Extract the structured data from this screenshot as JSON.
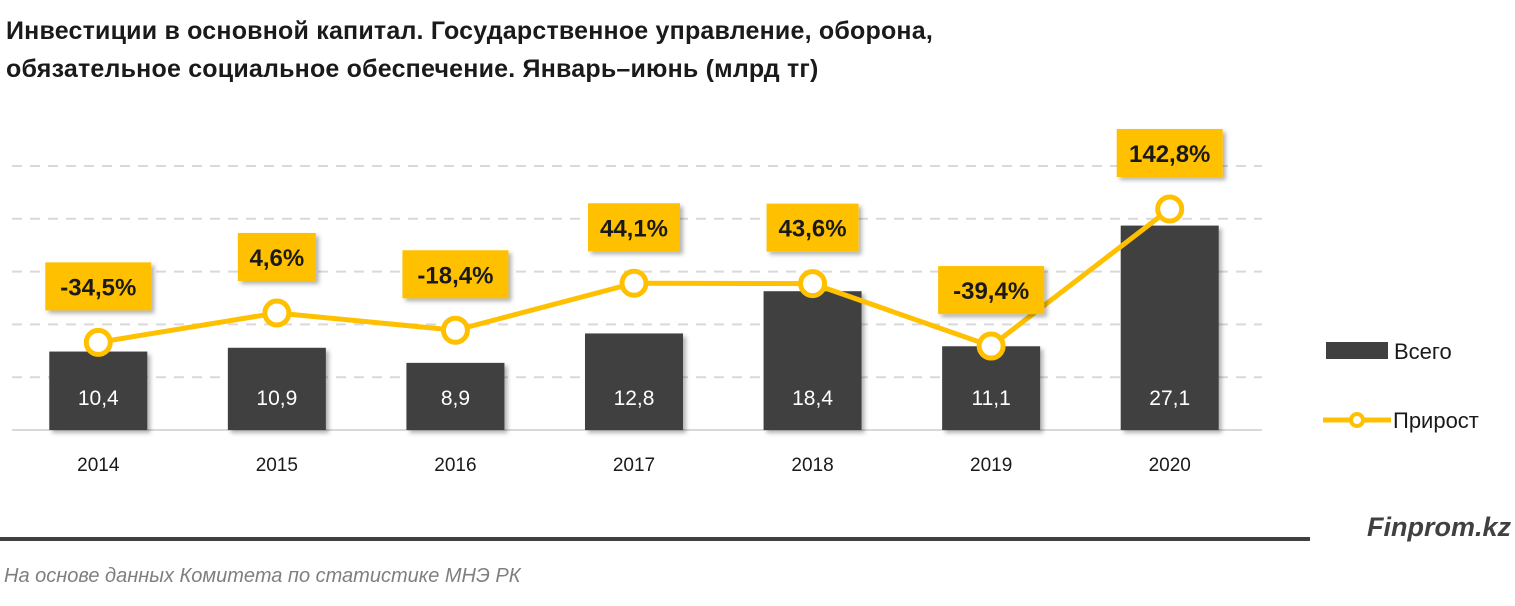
{
  "title_line1": "Инвестиции в основной капитал. Государственное управление, оборона,",
  "title_line2": "обязательное социальное обеспечение. Январь–июнь (млрд тг)",
  "brand": "Finprom.kz",
  "source": "На основе данных  Комитета по статистике МНЭ РК",
  "colors": {
    "bar": "#404040",
    "line": "#FFC000",
    "label_box": "#FFC000",
    "grid": "#d9d9d9"
  },
  "chart_data": {
    "type": "bar+line",
    "categories": [
      "2014",
      "2015",
      "2016",
      "2017",
      "2018",
      "2019",
      "2020"
    ],
    "series": [
      {
        "name": "Всего",
        "type": "bar",
        "values": [
          10.4,
          10.9,
          8.9,
          12.8,
          18.4,
          11.1,
          27.1
        ],
        "labels": [
          "10,4",
          "10,9",
          "8,9",
          "12,8",
          "18,4",
          "11,1",
          "27,1"
        ]
      },
      {
        "name": "Прирост",
        "type": "line",
        "values": [
          -34.5,
          4.6,
          -18.4,
          44.1,
          43.6,
          -39.4,
          142.8
        ],
        "labels": [
          "-34,5%",
          "4,6%",
          "-18,4%",
          "44,1%",
          "43,6%",
          "-39,4%",
          "142,8%"
        ]
      }
    ],
    "ylim": [
      0,
      35
    ],
    "y2lim": [
      -151,
      200
    ],
    "grid": true,
    "legend_position": "right"
  }
}
